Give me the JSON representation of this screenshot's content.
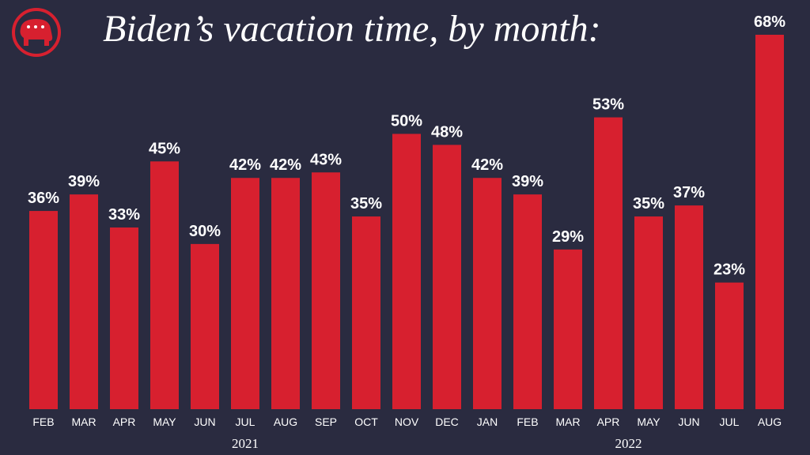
{
  "chart_data": {
    "type": "bar",
    "title": "Biden’s vacation time, by month:",
    "categories": [
      "FEB",
      "MAR",
      "APR",
      "MAY",
      "JUN",
      "JUL",
      "AUG",
      "SEP",
      "OCT",
      "NOV",
      "DEC",
      "JAN",
      "FEB",
      "MAR",
      "APR",
      "MAY",
      "JUN",
      "JUL",
      "AUG"
    ],
    "values": [
      36,
      39,
      33,
      45,
      30,
      42,
      42,
      43,
      35,
      50,
      48,
      42,
      39,
      29,
      53,
      35,
      37,
      23,
      68
    ],
    "value_labels": [
      "36%",
      "39%",
      "33%",
      "45%",
      "30%",
      "42%",
      "42%",
      "43%",
      "35%",
      "50%",
      "48%",
      "42%",
      "39%",
      "29%",
      "53%",
      "35%",
      "37%",
      "23%",
      "68%"
    ],
    "years": [
      "2021",
      "2022"
    ],
    "color": "#d7202f",
    "grid": false
  }
}
